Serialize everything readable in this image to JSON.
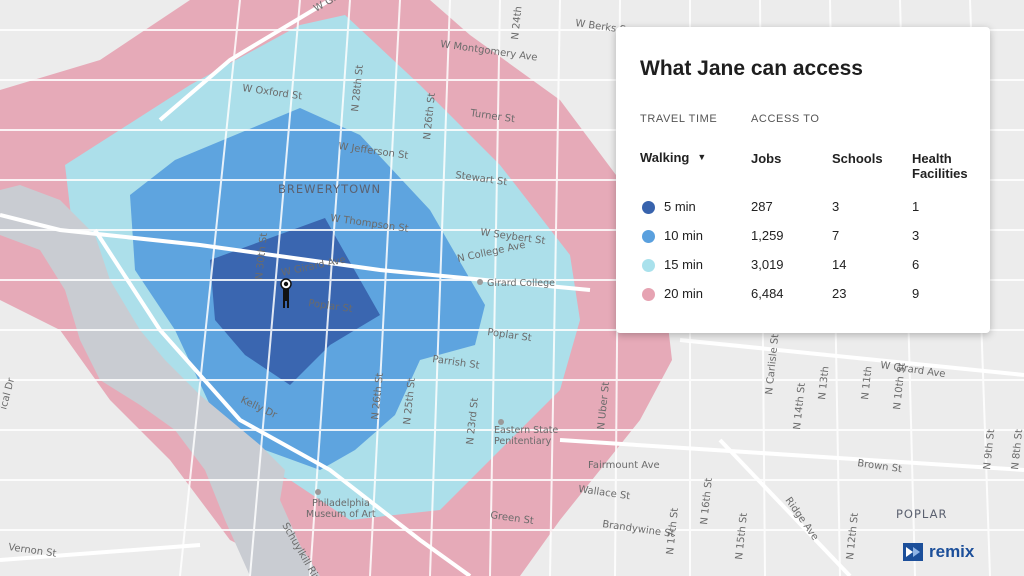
{
  "panel": {
    "title": "What Jane can access",
    "travel_time_label": "TRAVEL TIME",
    "access_to_label": "ACCESS TO",
    "mode_selected": "Walking",
    "metrics": [
      "Jobs",
      "Schools",
      "Health Facilities"
    ],
    "rows": [
      {
        "label": "5 min",
        "jobs": "287",
        "schools": "3",
        "health": "1",
        "color": "#3863ad"
      },
      {
        "label": "10 min",
        "jobs": "1,259",
        "schools": "7",
        "health": "3",
        "color": "#5aa0de"
      },
      {
        "label": "15 min",
        "jobs": "3,019",
        "schools": "14",
        "health": "6",
        "color": "#a9e1ec"
      },
      {
        "label": "20 min",
        "jobs": "6,484",
        "schools": "23",
        "health": "9",
        "color": "#e6a3b2"
      }
    ]
  },
  "map": {
    "district_label": "BREWERYTOWN",
    "district_label_2": "POPLAR",
    "streets": {
      "glenwood": "W Glenw",
      "berks": "W Berks S",
      "montgomery": "W Montgomery Ave",
      "oxford": "W Oxford St",
      "jefferson": "W Jefferson St",
      "turner": "Turner St",
      "stewart": "Stewart St",
      "thompson": "W Thompson St",
      "seybert": "W Seybert St",
      "college": "N College Ave",
      "girard_w": "W Girard Ave",
      "poplar_w": "Poplar St",
      "poplar_e": "Poplar St",
      "parrish": "Parrish St",
      "kelly": "Kelly Dr",
      "fairmount": "Fairmount Ave",
      "wallace": "Wallace St",
      "green": "Green St",
      "brandywine": "Brandywine St",
      "brown": "Brown St",
      "girard_e": "W Girard Ave",
      "vernon": "Vernon St",
      "ridge": "Ridge Ave",
      "schuylkill": "Schuylkill Riv",
      "n28": "N 28th St",
      "n26": "N 26th St",
      "n24": "N 24th",
      "n30": "N 30th St",
      "n26s": "N 26th St",
      "n25s": "N 25th St",
      "n23s": "N 23rd St",
      "uber": "N Uber St",
      "carlisle": "N Carlisle St",
      "n16": "N 16th St",
      "n17": "N 17th St",
      "n12": "N 12th St",
      "n9": "N 9th St",
      "n8": "N 8th St",
      "n10": "N 10th St",
      "n11": "N 11th",
      "n14": "N 14th St",
      "n15": "N 15th St",
      "n13": "N 13th",
      "cal": "ical Dr"
    },
    "poi": {
      "girard_college": "Girard College",
      "penitentiary_1": "Eastern State",
      "penitentiary_2": "Penitentiary",
      "museum_1": "Philadelphia",
      "museum_2": "Museum of Art"
    },
    "colors": {
      "land": "#ececec",
      "road": "#ffffff",
      "river": "#c9ccd2",
      "ring20": "#e6a3b2",
      "ring15": "#a9e1ec",
      "ring10": "#5aa0de",
      "ring5": "#3863ad"
    }
  },
  "brand": {
    "name": "remix"
  }
}
